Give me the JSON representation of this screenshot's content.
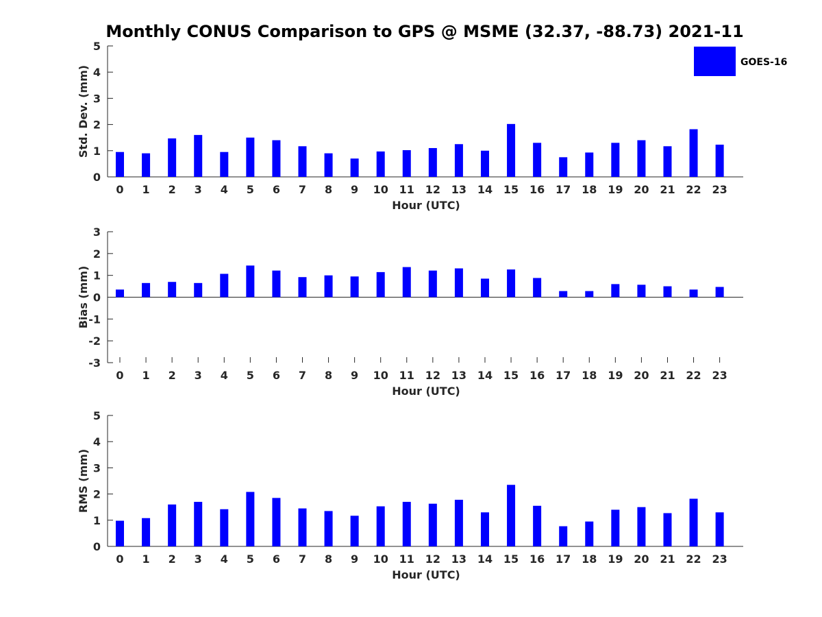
{
  "title": "Monthly CONUS Comparison to GPS @ MSME (32.37, -88.73) 2021-11",
  "legend": {
    "label": "GOES-16",
    "color": "#0000ff",
    "placement": "top-right"
  },
  "chart_data": [
    {
      "type": "bar",
      "xlabel": "Hour (UTC)",
      "ylabel": "Std. Dev. (mm)",
      "ylim": [
        0,
        5
      ],
      "yticks": [
        "0",
        "1",
        "2",
        "3",
        "4",
        "5"
      ],
      "categories": [
        "0",
        "1",
        "2",
        "3",
        "4",
        "5",
        "6",
        "7",
        "8",
        "9",
        "10",
        "11",
        "12",
        "13",
        "14",
        "15",
        "16",
        "17",
        "18",
        "19",
        "20",
        "21",
        "22",
        "23"
      ],
      "series": [
        {
          "name": "GOES-16",
          "color": "#0000ff",
          "values": [
            0.95,
            0.9,
            1.47,
            1.6,
            0.95,
            1.5,
            1.4,
            1.17,
            0.9,
            0.7,
            0.97,
            1.02,
            1.1,
            1.25,
            1.0,
            2.02,
            1.3,
            0.75,
            0.93,
            1.3,
            1.4,
            1.17,
            1.82,
            1.23
          ]
        }
      ]
    },
    {
      "type": "bar",
      "xlabel": "Hour (UTC)",
      "ylabel": "Bias (mm)",
      "ylim": [
        -3,
        3
      ],
      "yticks": [
        "-3",
        "-2",
        "-1",
        "0",
        "1",
        "2",
        "3"
      ],
      "categories": [
        "0",
        "1",
        "2",
        "3",
        "4",
        "5",
        "6",
        "7",
        "8",
        "9",
        "10",
        "11",
        "12",
        "13",
        "14",
        "15",
        "16",
        "17",
        "18",
        "19",
        "20",
        "21",
        "22",
        "23"
      ],
      "series": [
        {
          "name": "GOES-16",
          "color": "#0000ff",
          "values": [
            0.35,
            0.65,
            0.7,
            0.65,
            1.07,
            1.45,
            1.22,
            0.92,
            1.0,
            0.95,
            1.15,
            1.38,
            1.22,
            1.32,
            0.85,
            1.27,
            0.88,
            0.28,
            0.28,
            0.6,
            0.57,
            0.5,
            0.35,
            0.47
          ]
        }
      ]
    },
    {
      "type": "bar",
      "xlabel": "Hour (UTC)",
      "ylabel": "RMS (mm)",
      "ylim": [
        0,
        5
      ],
      "yticks": [
        "0",
        "1",
        "2",
        "3",
        "4",
        "5"
      ],
      "categories": [
        "0",
        "1",
        "2",
        "3",
        "4",
        "5",
        "6",
        "7",
        "8",
        "9",
        "10",
        "11",
        "12",
        "13",
        "14",
        "15",
        "16",
        "17",
        "18",
        "19",
        "20",
        "21",
        "22",
        "23"
      ],
      "series": [
        {
          "name": "GOES-16",
          "color": "#0000ff",
          "values": [
            0.98,
            1.08,
            1.6,
            1.7,
            1.42,
            2.08,
            1.85,
            1.45,
            1.35,
            1.17,
            1.53,
            1.7,
            1.63,
            1.78,
            1.3,
            2.35,
            1.55,
            0.77,
            0.95,
            1.4,
            1.5,
            1.27,
            1.82,
            1.3
          ]
        }
      ]
    }
  ]
}
